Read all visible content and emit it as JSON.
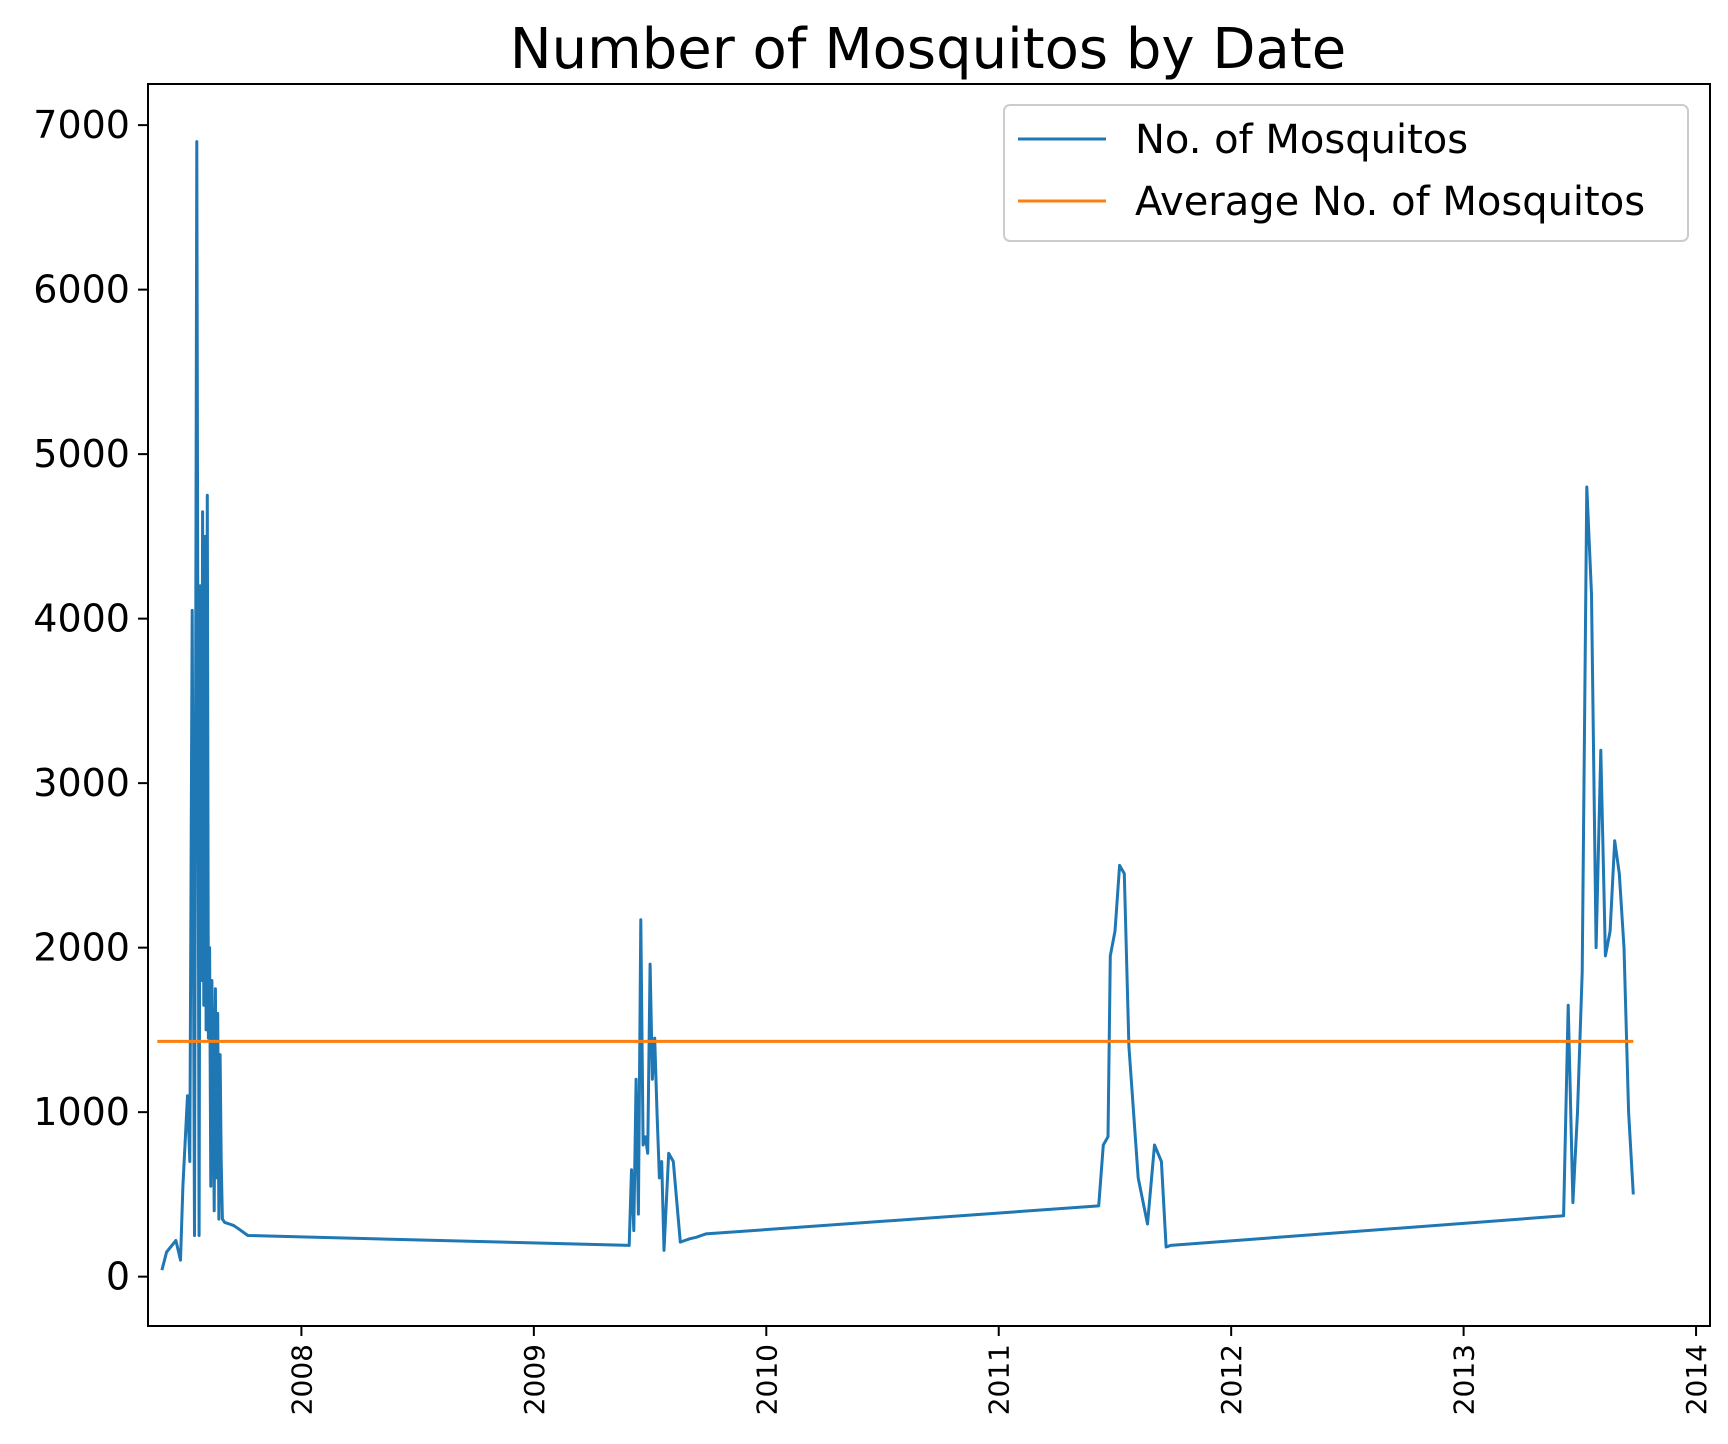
{
  "chart_data": {
    "type": "line",
    "title": "Number of Mosquitos by Date",
    "xlabel": "",
    "ylabel": "",
    "xlim": [
      2007.34,
      2014.06
    ],
    "ylim": [
      -300,
      7250
    ],
    "yticks": [
      0,
      1000,
      2000,
      3000,
      4000,
      5000,
      6000,
      7000
    ],
    "xticks": [
      2008,
      2009,
      2010,
      2011,
      2012,
      2013,
      2014
    ],
    "legend_position": "top-right",
    "series": [
      {
        "name": "No. of Mosquitos",
        "color": "#1f77b4",
        "x": [
          2007.4,
          2007.42,
          2007.46,
          2007.48,
          2007.49,
          2007.51,
          2007.52,
          2007.53,
          2007.54,
          2007.55,
          2007.56,
          2007.565,
          2007.57,
          2007.575,
          2007.58,
          2007.585,
          2007.59,
          2007.595,
          2007.6,
          2007.605,
          2007.61,
          2007.615,
          2007.62,
          2007.625,
          2007.63,
          2007.635,
          2007.64,
          2007.645,
          2007.65,
          2007.655,
          2007.66,
          2007.67,
          2007.68,
          2007.69,
          2007.7,
          2007.71,
          2007.72,
          2007.73,
          2007.74,
          2007.75,
          2007.76,
          2007.77,
          2009.41,
          2009.42,
          2009.43,
          2009.44,
          2009.45,
          2009.46,
          2009.47,
          2009.48,
          2009.49,
          2009.5,
          2009.51,
          2009.52,
          2009.53,
          2009.54,
          2009.55,
          2009.56,
          2009.58,
          2009.6,
          2009.63,
          2009.65,
          2009.67,
          2009.7,
          2009.72,
          2009.74,
          2011.43,
          2011.45,
          2011.47,
          2011.48,
          2011.5,
          2011.52,
          2011.54,
          2011.56,
          2011.6,
          2011.64,
          2011.67,
          2011.7,
          2011.72,
          2011.74,
          2013.43,
          2013.45,
          2013.47,
          2013.49,
          2013.51,
          2013.53,
          2013.55,
          2013.57,
          2013.59,
          2013.61,
          2013.63,
          2013.65,
          2013.67,
          2013.69,
          2013.71,
          2013.73
        ],
        "values": [
          40,
          150,
          220,
          100,
          550,
          1100,
          700,
          4050,
          250,
          6900,
          250,
          4200,
          1800,
          4650,
          1650,
          4500,
          1500,
          4750,
          1450,
          2000,
          550,
          1800,
          1200,
          400,
          1750,
          600,
          1600,
          350,
          1350,
          700,
          350,
          330,
          325,
          320,
          315,
          310,
          300,
          290,
          280,
          270,
          260,
          250,
          190,
          650,
          280,
          1200,
          380,
          2170,
          800,
          850,
          750,
          1900,
          1200,
          1450,
          1000,
          600,
          700,
          160,
          750,
          700,
          210,
          220,
          230,
          240,
          250,
          260,
          430,
          800,
          850,
          1950,
          2100,
          2500,
          2450,
          1400,
          600,
          320,
          800,
          700,
          180,
          190,
          370,
          1650,
          450,
          1000,
          1850,
          4800,
          4150,
          2000,
          3200,
          1950,
          2100,
          2650,
          2450,
          2000,
          1000,
          500
        ]
      },
      {
        "name": "Average No. of Mosquitos",
        "color": "#ff7f0e",
        "x": [
          2007.38,
          2013.73
        ],
        "values": [
          1430,
          1430
        ]
      }
    ]
  }
}
